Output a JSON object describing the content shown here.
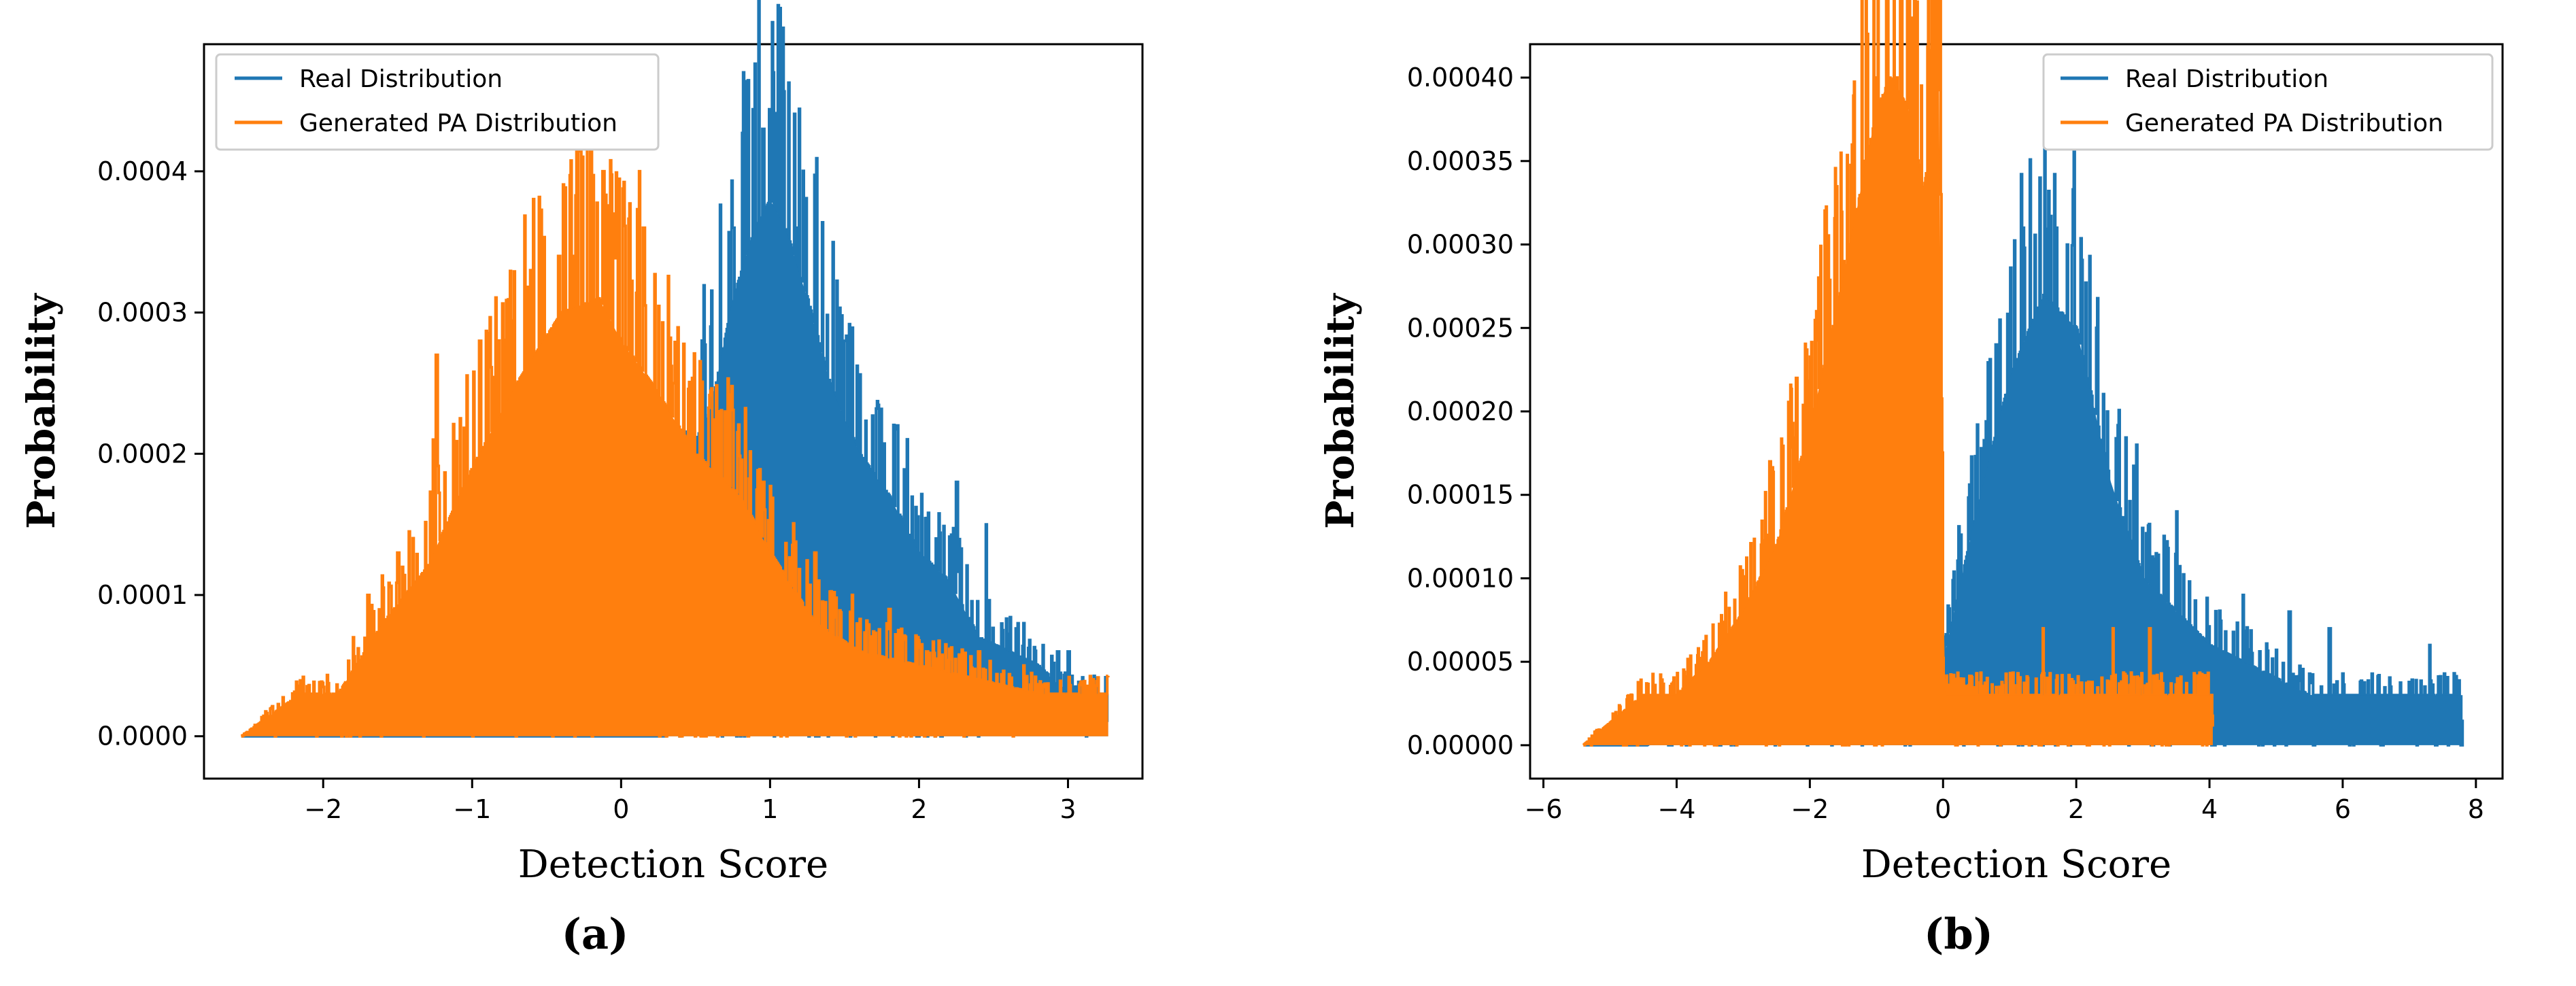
{
  "chart_data": [
    {
      "panel_label": "(a)",
      "type": "line",
      "xlabel": "Detection Score",
      "ylabel": "Probability",
      "xlim": [
        -2.8,
        3.5
      ],
      "ylim": [
        -3e-05,
        0.00049
      ],
      "xticks": [
        -2,
        -1,
        0,
        1,
        2,
        3
      ],
      "xtick_labels": [
        "−2",
        "−1",
        "0",
        "1",
        "2",
        "3"
      ],
      "yticks": [
        0.0,
        0.0001,
        0.0002,
        0.0003,
        0.0004
      ],
      "ytick_labels": [
        "0.0000",
        "0.0001",
        "0.0002",
        "0.0003",
        "0.0004"
      ],
      "legend_position": "top-left",
      "series": [
        {
          "name": "Real Distribution",
          "color": "#1f77b4",
          "x": [
            -2.55,
            -1.8,
            -1.2,
            -0.6,
            0.0,
            0.3,
            0.45,
            0.6,
            0.75,
            0.9,
            1.0,
            1.1,
            1.25,
            1.4,
            1.6,
            1.8,
            2.0,
            2.2,
            2.4,
            2.6,
            2.8,
            3.0,
            3.27
          ],
          "values": [
            0.0,
            0.0,
            0.0,
            0.0,
            0.0,
            0.0,
            0.0002,
            0.00023,
            0.00031,
            0.00036,
            0.00038,
            0.00036,
            0.00031,
            0.00025,
            0.0002,
            0.00017,
            0.00013,
            0.00011,
            7e-05,
            6e-05,
            5e-05,
            3e-05,
            3e-05
          ],
          "peaks": [
            [
              0.82,
              0.00047
            ],
            [
              1.02,
              0.00047
            ],
            [
              0.95,
              0.00043
            ],
            [
              0.75,
              0.00036
            ],
            [
              1.18,
              0.00036
            ],
            [
              1.5,
              0.00028
            ],
            [
              1.85,
              0.00022
            ],
            [
              2.25,
              0.00018
            ],
            [
              2.45,
              0.00015
            ],
            [
              2.7,
              8e-05
            ],
            [
              2.93,
              6e-05
            ],
            [
              3.0,
              6e-05
            ]
          ]
        },
        {
          "name": "Generated PA Distribution",
          "color": "#ff7f0e",
          "x": [
            -2.55,
            -2.15,
            -1.9,
            -1.6,
            -1.3,
            -1.0,
            -0.7,
            -0.4,
            -0.15,
            0.0,
            0.2,
            0.5,
            0.8,
            1.0,
            1.3,
            1.6,
            2.0,
            2.4,
            2.8,
            3.27
          ],
          "values": [
            0.0,
            3e-05,
            3e-05,
            8e-05,
            0.00012,
            0.00019,
            0.00025,
            0.0003,
            0.00031,
            0.00028,
            0.00025,
            0.0002,
            0.00017,
            0.00013,
            8e-05,
            6e-05,
            5e-05,
            4e-05,
            3e-05,
            3e-05
          ],
          "peaks": [
            [
              -2.15,
              3e-05
            ],
            [
              -1.8,
              7e-05
            ],
            [
              -1.7,
              0.0001
            ],
            [
              -1.5,
              0.00013
            ],
            [
              -1.26,
              0.00021
            ],
            [
              -1.24,
              0.00027
            ],
            [
              -0.95,
              0.00028
            ],
            [
              -0.42,
              0.00034
            ],
            [
              -0.32,
              0.00034
            ],
            [
              -0.12,
              0.0004
            ],
            [
              -0.05,
              0.00037
            ],
            [
              0.12,
              0.0004
            ],
            [
              0.15,
              0.00036
            ],
            [
              0.35,
              0.00025
            ],
            [
              0.65,
              0.00023
            ],
            [
              0.95,
              0.00018
            ],
            [
              1.3,
              0.00013
            ],
            [
              1.55,
              0.0001
            ],
            [
              1.8,
              9e-05
            ],
            [
              2.05,
              6e-05
            ],
            [
              2.4,
              6e-05
            ],
            [
              2.7,
              5e-05
            ],
            [
              3.25,
              3e-05
            ]
          ]
        }
      ]
    },
    {
      "panel_label": "(b)",
      "type": "line",
      "xlabel": "Detection Score",
      "ylabel": "Probability",
      "xlim": [
        -6.2,
        8.4
      ],
      "ylim": [
        -2e-05,
        0.00042
      ],
      "xticks": [
        -6,
        -4,
        -2,
        0,
        2,
        4,
        6,
        8
      ],
      "xtick_labels": [
        "−6",
        "−4",
        "−2",
        "0",
        "2",
        "4",
        "6",
        "8"
      ],
      "yticks": [
        0.0,
        5e-05,
        0.0001,
        0.00015,
        0.0002,
        0.00025,
        0.0003,
        0.00035,
        0.0004
      ],
      "ytick_labels": [
        "0.00000",
        "0.00005",
        "0.00010",
        "0.00015",
        "0.00020",
        "0.00025",
        "0.00030",
        "0.00035",
        "0.00040"
      ],
      "legend_position": "top-right",
      "series": [
        {
          "name": "Real Distribution",
          "color": "#1f77b4",
          "x": [
            -5.4,
            -4.5,
            0.0,
            0.5,
            1.0,
            1.5,
            2.0,
            2.5,
            3.0,
            3.5,
            4.0,
            4.5,
            5.0,
            5.5,
            6.0,
            7.0,
            7.8
          ],
          "values": [
            0.0,
            0.0,
            5e-05,
            0.00014,
            0.00022,
            0.00027,
            0.00025,
            0.00016,
            0.0001,
            8e-05,
            6e-05,
            5e-05,
            4e-05,
            3e-05,
            3e-05,
            3e-05,
            3e-05
          ],
          "peaks": [
            [
              1.2,
              0.00031
            ],
            [
              1.45,
              0.00034
            ],
            [
              1.7,
              0.00031
            ],
            [
              0.8,
              0.00024
            ],
            [
              2.3,
              0.00025
            ],
            [
              2.9,
              0.00018
            ],
            [
              3.5,
              0.00014
            ],
            [
              4.5,
              9e-05
            ],
            [
              5.2,
              8e-05
            ],
            [
              5.8,
              7e-05
            ],
            [
              7.3,
              6e-05
            ]
          ]
        },
        {
          "name": "Generated PA Distribution",
          "color": "#ff7f0e",
          "x": [
            -5.4,
            -4.5,
            -4.0,
            -3.5,
            -3.0,
            -2.5,
            -2.0,
            -1.6,
            -1.3,
            -1.0,
            -0.8,
            -0.5,
            -0.3,
            -0.05,
            0.0,
            1.0,
            2.0,
            3.0,
            4.05
          ],
          "values": [
            0.0,
            3e-05,
            3e-05,
            5e-05,
            8e-05,
            0.00012,
            0.00019,
            0.00026,
            0.00032,
            0.00038,
            0.0004,
            0.00038,
            0.00033,
            0.0004,
            3e-05,
            3e-05,
            3e-05,
            3e-05,
            3e-05
          ],
          "peaks": [
            [
              -4.5,
              3e-05
            ],
            [
              -3.3,
              6e-05
            ],
            [
              -2.6,
              0.00017
            ],
            [
              -2.2,
              0.00022
            ],
            [
              -1.9,
              0.00026
            ],
            [
              -1.5,
              0.00029
            ],
            [
              -1.2,
              0.00035
            ],
            [
              -1.0,
              0.0004
            ],
            [
              -0.7,
              0.0004
            ],
            [
              -0.55,
              0.00037
            ],
            [
              -0.15,
              0.0004
            ],
            [
              1.5,
              7e-05
            ],
            [
              2.55,
              7e-05
            ],
            [
              3.1,
              7e-05
            ]
          ]
        }
      ]
    }
  ]
}
